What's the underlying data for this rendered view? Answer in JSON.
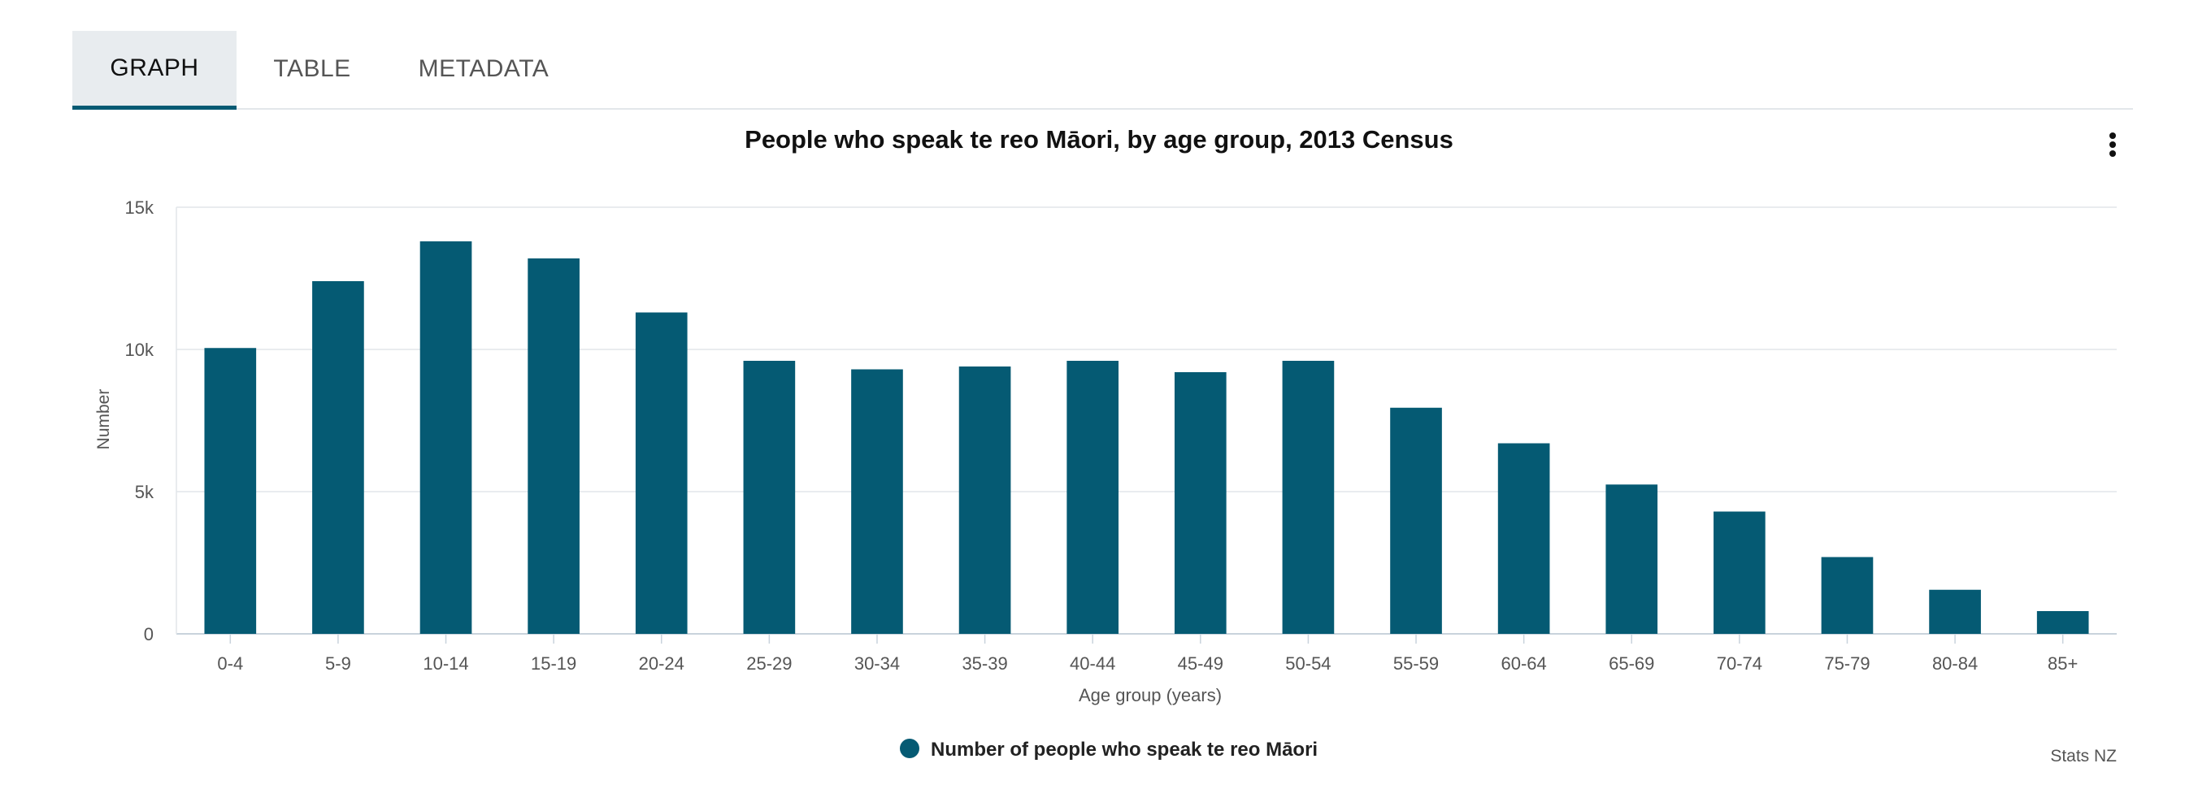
{
  "tabs": [
    {
      "label": "GRAPH",
      "active": true
    },
    {
      "label": "TABLE",
      "active": false
    },
    {
      "label": "METADATA",
      "active": false
    }
  ],
  "menu_icon": "more-vertical-icon",
  "source": "Stats NZ",
  "colors": {
    "bar": "#055a73",
    "grid": "#e2e6ea",
    "axis": "#c9d3dc",
    "tab_active_bg": "#e8ecef",
    "tab_underline": "#055a73"
  },
  "chart_data": {
    "type": "bar",
    "title": "People who speak te reo Māori, by age group, 2013 Census",
    "xlabel": "Age group (years)",
    "ylabel": "Number",
    "ylim": [
      0,
      15000
    ],
    "yticks": [
      0,
      5000,
      10000,
      15000
    ],
    "ytick_labels": [
      "0",
      "5k",
      "10k",
      "15k"
    ],
    "grid": true,
    "legend_position": "bottom-center",
    "categories": [
      "0-4",
      "5-9",
      "10-14",
      "15-19",
      "20-24",
      "25-29",
      "30-34",
      "35-39",
      "40-44",
      "45-49",
      "50-54",
      "55-59",
      "60-64",
      "65-69",
      "70-74",
      "75-79",
      "80-84",
      "85+"
    ],
    "series": [
      {
        "name": "Number of people who speak te reo Māori",
        "values": [
          10050,
          12400,
          13800,
          13200,
          11300,
          9600,
          9300,
          9400,
          9600,
          9200,
          9600,
          7950,
          6700,
          5250,
          4300,
          2700,
          1550,
          800
        ]
      }
    ]
  }
}
